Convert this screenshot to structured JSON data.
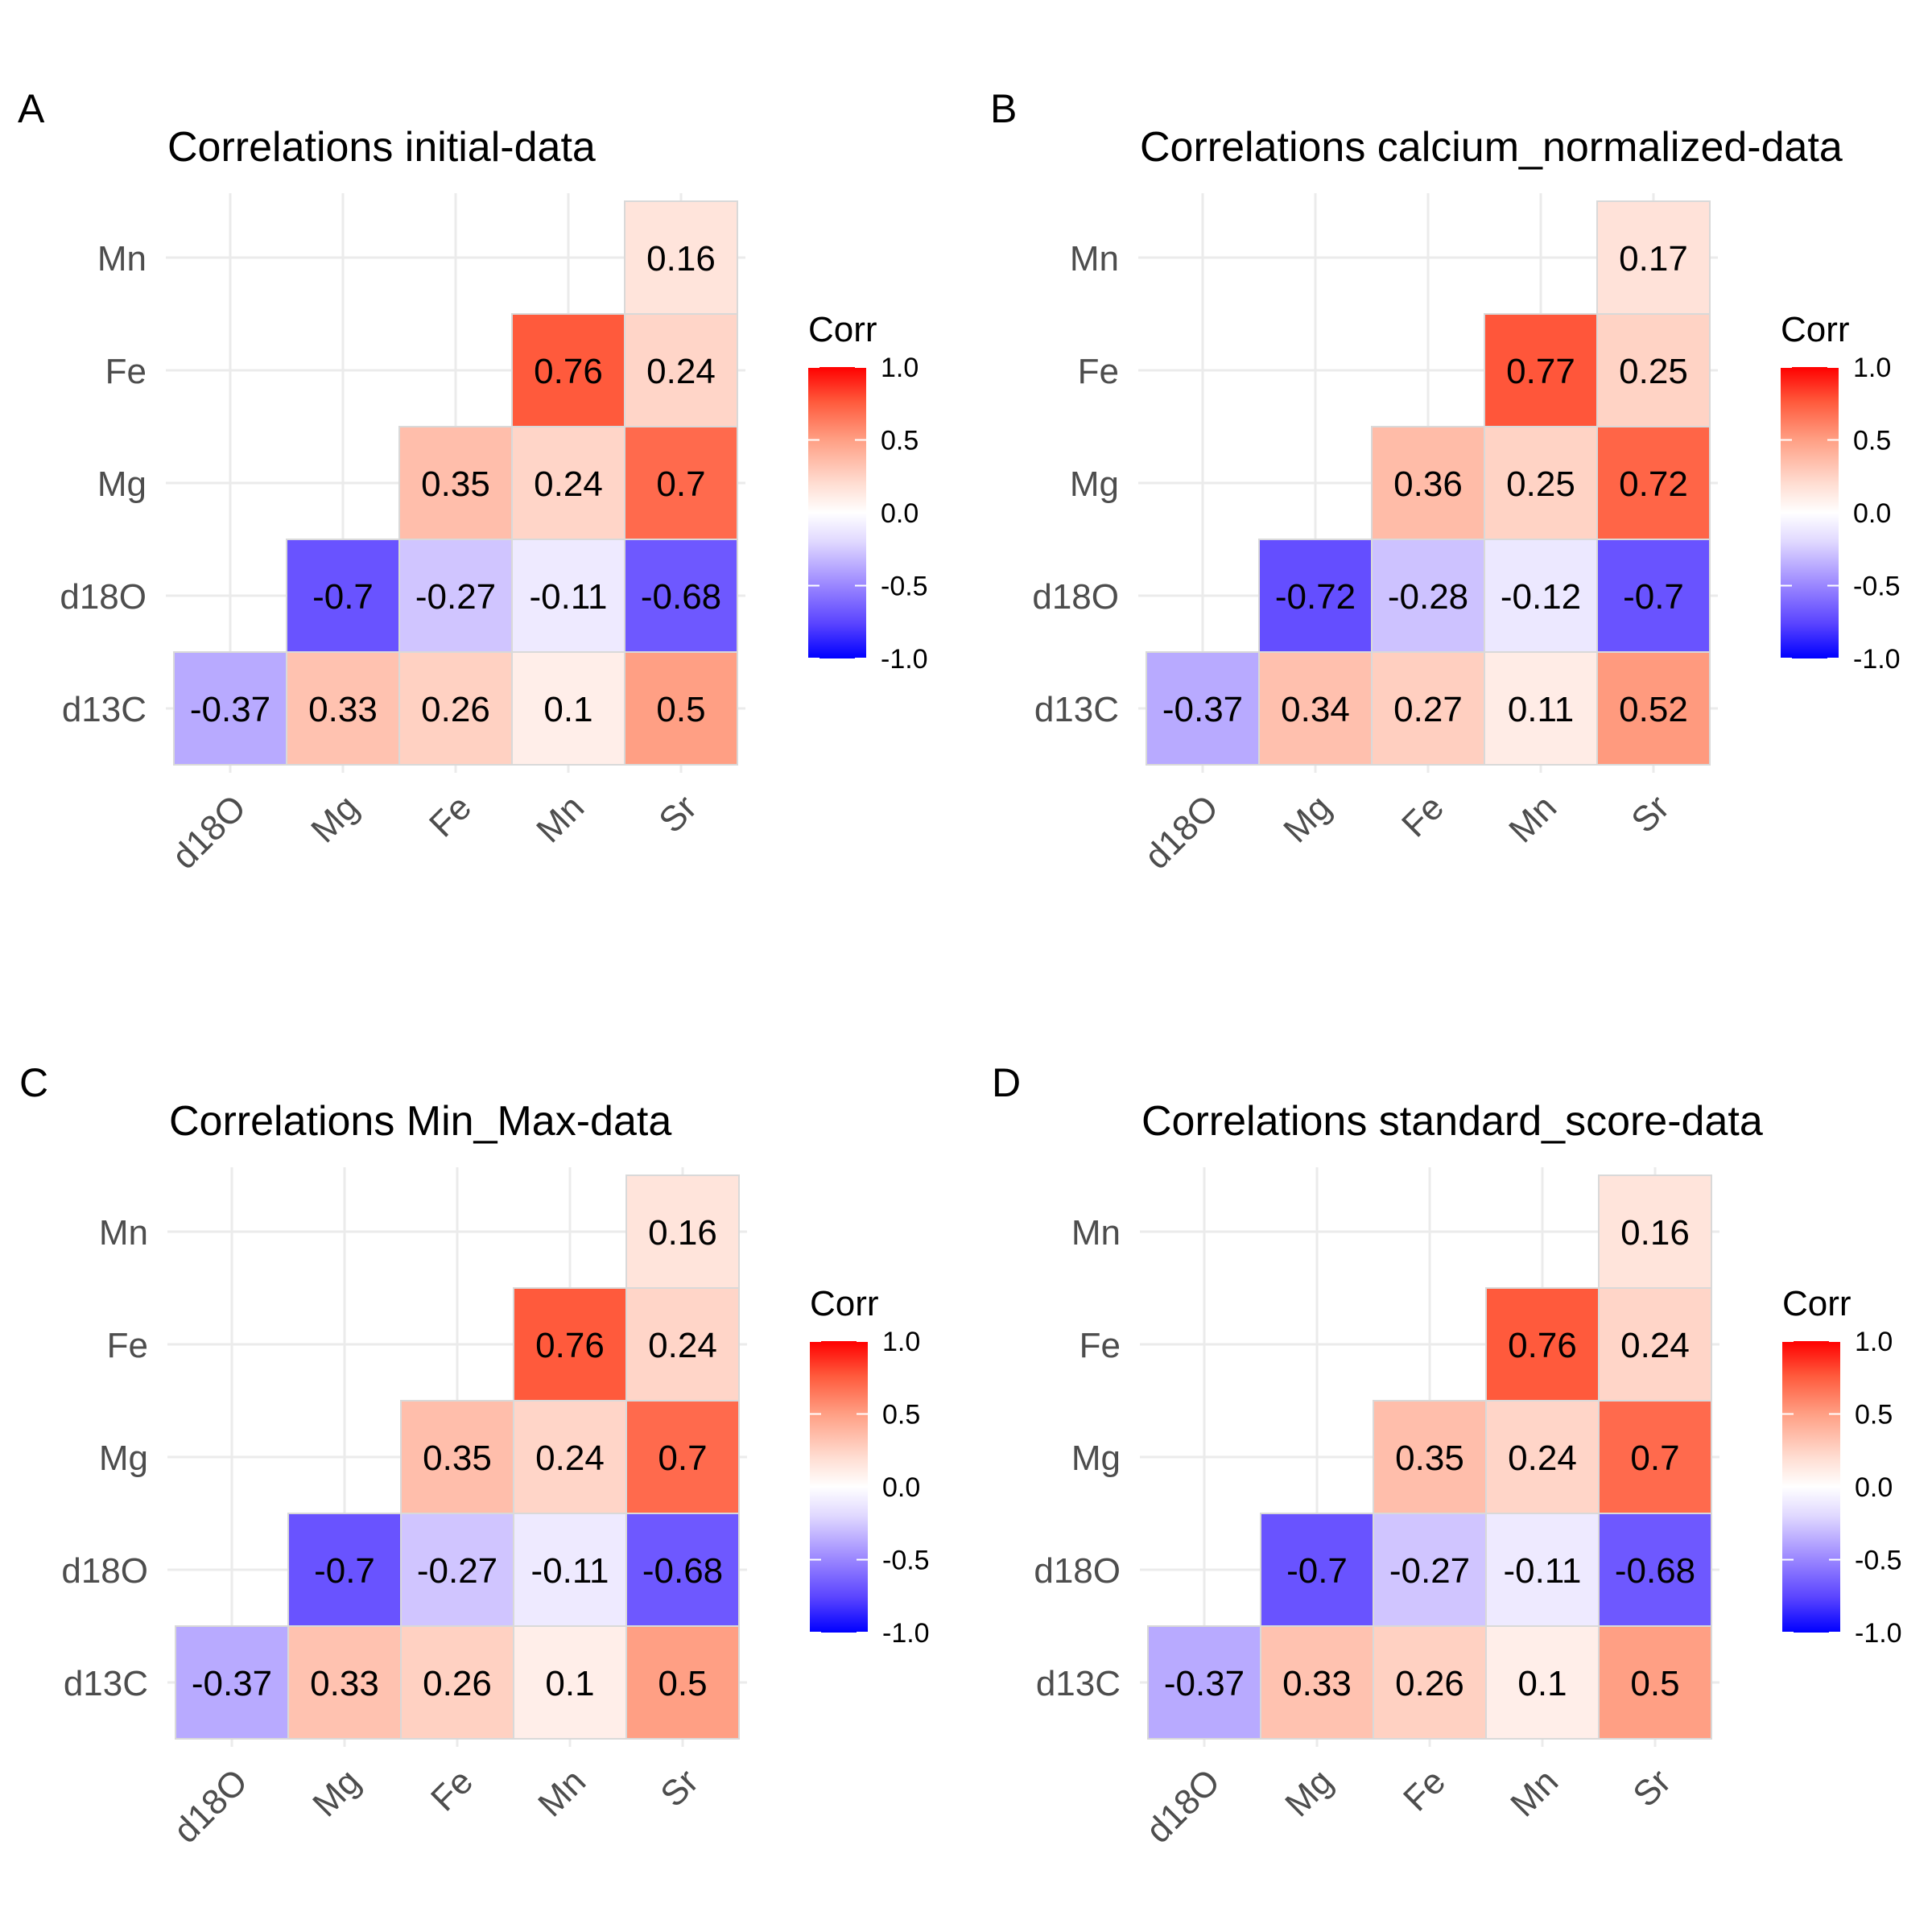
{
  "chart_data": [
    {
      "type": "heatmap",
      "panel_label": "A",
      "title": "Correlations initial-data",
      "x_categories": [
        "d18O",
        "Mg",
        "Fe",
        "Mn",
        "Sr"
      ],
      "y_categories": [
        "d13C",
        "d18O",
        "Mg",
        "Fe",
        "Mn"
      ],
      "cells": [
        {
          "x": "d18O",
          "y": "d13C",
          "value": -0.37
        },
        {
          "x": "Mg",
          "y": "d13C",
          "value": 0.33
        },
        {
          "x": "Fe",
          "y": "d13C",
          "value": 0.26
        },
        {
          "x": "Mn",
          "y": "d13C",
          "value": 0.1
        },
        {
          "x": "Sr",
          "y": "d13C",
          "value": 0.5
        },
        {
          "x": "Mg",
          "y": "d18O",
          "value": -0.7
        },
        {
          "x": "Fe",
          "y": "d18O",
          "value": -0.27
        },
        {
          "x": "Mn",
          "y": "d18O",
          "value": -0.11
        },
        {
          "x": "Sr",
          "y": "d18O",
          "value": -0.68
        },
        {
          "x": "Fe",
          "y": "Mg",
          "value": 0.35
        },
        {
          "x": "Mn",
          "y": "Mg",
          "value": 0.24
        },
        {
          "x": "Sr",
          "y": "Mg",
          "value": 0.7
        },
        {
          "x": "Mn",
          "y": "Fe",
          "value": 0.76
        },
        {
          "x": "Sr",
          "y": "Fe",
          "value": 0.24
        },
        {
          "x": "Sr",
          "y": "Mn",
          "value": 0.16
        }
      ],
      "legend": {
        "title": "Corr",
        "range": [
          -1.0,
          1.0
        ],
        "ticks": [
          "1.0",
          "0.5",
          "0.0",
          "-0.5",
          "-1.0"
        ],
        "placement": "right"
      }
    },
    {
      "type": "heatmap",
      "panel_label": "B",
      "title": "Correlations calcium_normalized-data",
      "x_categories": [
        "d18O",
        "Mg",
        "Fe",
        "Mn",
        "Sr"
      ],
      "y_categories": [
        "d13C",
        "d18O",
        "Mg",
        "Fe",
        "Mn"
      ],
      "cells": [
        {
          "x": "d18O",
          "y": "d13C",
          "value": -0.37
        },
        {
          "x": "Mg",
          "y": "d13C",
          "value": 0.34
        },
        {
          "x": "Fe",
          "y": "d13C",
          "value": 0.27
        },
        {
          "x": "Mn",
          "y": "d13C",
          "value": 0.11
        },
        {
          "x": "Sr",
          "y": "d13C",
          "value": 0.52
        },
        {
          "x": "Mg",
          "y": "d18O",
          "value": -0.72
        },
        {
          "x": "Fe",
          "y": "d18O",
          "value": -0.28
        },
        {
          "x": "Mn",
          "y": "d18O",
          "value": -0.12
        },
        {
          "x": "Sr",
          "y": "d18O",
          "value": -0.7
        },
        {
          "x": "Fe",
          "y": "Mg",
          "value": 0.36
        },
        {
          "x": "Mn",
          "y": "Mg",
          "value": 0.25
        },
        {
          "x": "Sr",
          "y": "Mg",
          "value": 0.72
        },
        {
          "x": "Mn",
          "y": "Fe",
          "value": 0.77
        },
        {
          "x": "Sr",
          "y": "Fe",
          "value": 0.25
        },
        {
          "x": "Sr",
          "y": "Mn",
          "value": 0.17
        }
      ],
      "legend": {
        "title": "Corr",
        "range": [
          -1.0,
          1.0
        ],
        "ticks": [
          "1.0",
          "0.5",
          "0.0",
          "-0.5",
          "-1.0"
        ],
        "placement": "right"
      }
    },
    {
      "type": "heatmap",
      "panel_label": "C",
      "title": "Correlations Min_Max-data",
      "x_categories": [
        "d18O",
        "Mg",
        "Fe",
        "Mn",
        "Sr"
      ],
      "y_categories": [
        "d13C",
        "d18O",
        "Mg",
        "Fe",
        "Mn"
      ],
      "cells": [
        {
          "x": "d18O",
          "y": "d13C",
          "value": -0.37
        },
        {
          "x": "Mg",
          "y": "d13C",
          "value": 0.33
        },
        {
          "x": "Fe",
          "y": "d13C",
          "value": 0.26
        },
        {
          "x": "Mn",
          "y": "d13C",
          "value": 0.1
        },
        {
          "x": "Sr",
          "y": "d13C",
          "value": 0.5
        },
        {
          "x": "Mg",
          "y": "d18O",
          "value": -0.7
        },
        {
          "x": "Fe",
          "y": "d18O",
          "value": -0.27
        },
        {
          "x": "Mn",
          "y": "d18O",
          "value": -0.11
        },
        {
          "x": "Sr",
          "y": "d18O",
          "value": -0.68
        },
        {
          "x": "Fe",
          "y": "Mg",
          "value": 0.35
        },
        {
          "x": "Mn",
          "y": "Mg",
          "value": 0.24
        },
        {
          "x": "Sr",
          "y": "Mg",
          "value": 0.7
        },
        {
          "x": "Mn",
          "y": "Fe",
          "value": 0.76
        },
        {
          "x": "Sr",
          "y": "Fe",
          "value": 0.24
        },
        {
          "x": "Sr",
          "y": "Mn",
          "value": 0.16
        }
      ],
      "legend": {
        "title": "Corr",
        "range": [
          -1.0,
          1.0
        ],
        "ticks": [
          "1.0",
          "0.5",
          "0.0",
          "-0.5",
          "-1.0"
        ],
        "placement": "right"
      }
    },
    {
      "type": "heatmap",
      "panel_label": "D",
      "title": "Correlations standard_score-data",
      "x_categories": [
        "d18O",
        "Mg",
        "Fe",
        "Mn",
        "Sr"
      ],
      "y_categories": [
        "d13C",
        "d18O",
        "Mg",
        "Fe",
        "Mn"
      ],
      "cells": [
        {
          "x": "d18O",
          "y": "d13C",
          "value": -0.37
        },
        {
          "x": "Mg",
          "y": "d13C",
          "value": 0.33
        },
        {
          "x": "Fe",
          "y": "d13C",
          "value": 0.26
        },
        {
          "x": "Mn",
          "y": "d13C",
          "value": 0.1
        },
        {
          "x": "Sr",
          "y": "d13C",
          "value": 0.5
        },
        {
          "x": "Mg",
          "y": "d18O",
          "value": -0.7
        },
        {
          "x": "Fe",
          "y": "d18O",
          "value": -0.27
        },
        {
          "x": "Mn",
          "y": "d18O",
          "value": -0.11
        },
        {
          "x": "Sr",
          "y": "d18O",
          "value": -0.68
        },
        {
          "x": "Fe",
          "y": "Mg",
          "value": 0.35
        },
        {
          "x": "Mn",
          "y": "Mg",
          "value": 0.24
        },
        {
          "x": "Sr",
          "y": "Mg",
          "value": 0.7
        },
        {
          "x": "Mn",
          "y": "Fe",
          "value": 0.76
        },
        {
          "x": "Sr",
          "y": "Fe",
          "value": 0.24
        },
        {
          "x": "Sr",
          "y": "Mn",
          "value": 0.16
        }
      ],
      "legend": {
        "title": "Corr",
        "range": [
          -1.0,
          1.0
        ],
        "ticks": [
          "1.0",
          "0.5",
          "0.0",
          "-0.5",
          "-1.0"
        ],
        "placement": "right"
      }
    }
  ],
  "colors": {
    "low": "#0000ff",
    "mid": "#ffffff",
    "high": "#ff0000",
    "grid": "#ebebeb",
    "cell_border": "#d9d9d9"
  }
}
